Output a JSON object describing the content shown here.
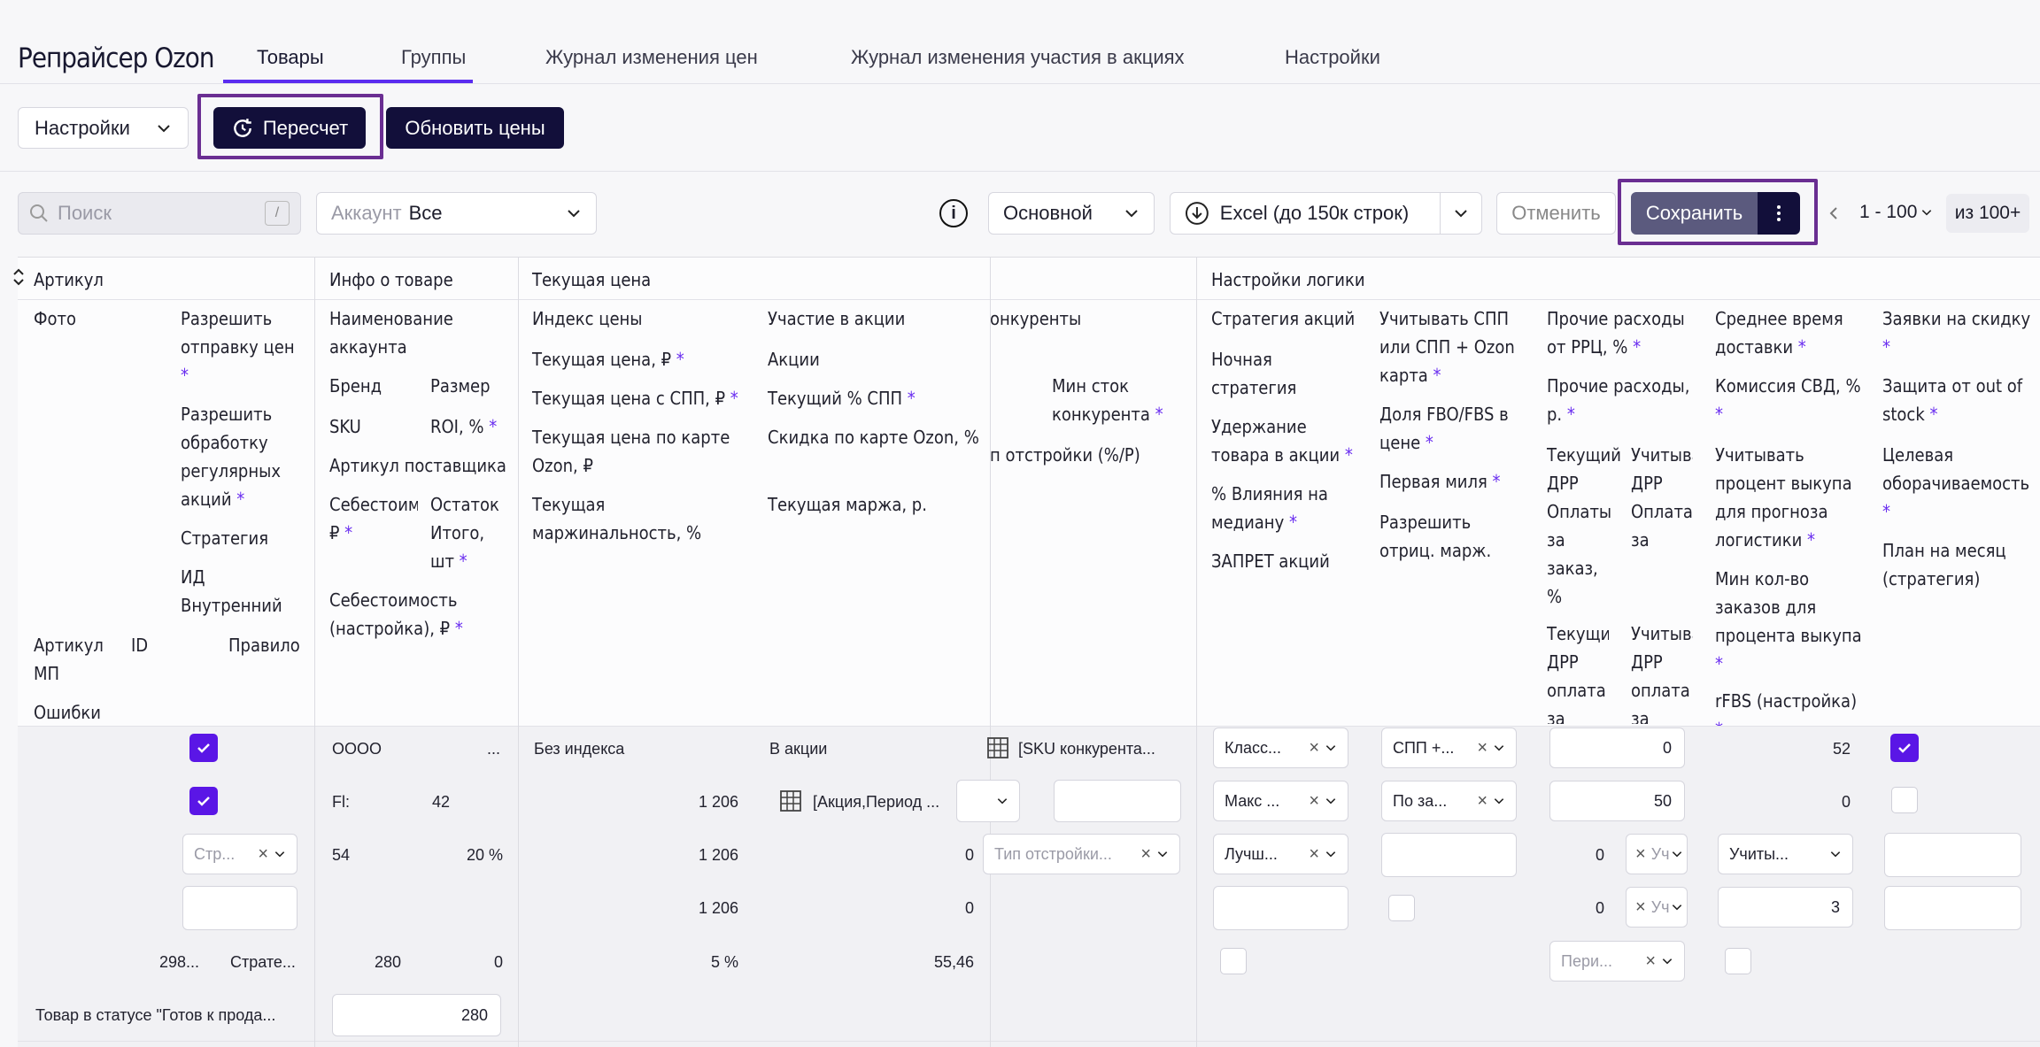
{
  "app": {
    "title": "Репрайсер Ozon"
  },
  "tabs": [
    {
      "label": "Товары"
    },
    {
      "label": "Группы"
    },
    {
      "label": "Журнал изменения цен"
    },
    {
      "label": "Журнал изменения участия в акциях"
    },
    {
      "label": "Настройки"
    }
  ],
  "toolbar": {
    "settings_label": "Настройки",
    "recalc_label": "Пересчет",
    "update_prices_label": "Обновить цены"
  },
  "filters": {
    "search_placeholder": "Поиск",
    "search_shortcut": "/",
    "account_label": "Аккаунт",
    "account_value": "Все",
    "view_value": "Основной",
    "excel_label": "Excel (до 150к строк)",
    "cancel_label": "Отменить",
    "save_label": "Сохранить",
    "pagination_range": "1 - 100",
    "pagination_total": "из 100+"
  },
  "groups": {
    "article": "Артикул",
    "product_info": "Инфо о товаре",
    "current_price": "Текущая цена",
    "logic_settings": "Настройки логики"
  },
  "cols": {
    "photo": "Фото",
    "allow_send": "Разрешить отправку цен",
    "allow_promo": "Разрешить обработку регулярных акций",
    "strategy": "Стратегия",
    "internal_id": "ИД Внутренний",
    "article_mp": "Артикул МП",
    "id": "ID",
    "rule": "Правило",
    "errors": "Ошибки",
    "account_name": "Наименование аккаунта",
    "brand": "Бренд",
    "size": "Размер",
    "sku": "SKU",
    "roi": "ROI, %",
    "supplier_article": "Артикул поставщика",
    "cost": "Себестоимость, ₽",
    "stock_total": "Остаток Итого, шт",
    "cost_setting": "Себестоимость (настройка), ₽",
    "price_index": "Индекс цены",
    "cur_price": "Текущая цена, ₽",
    "cur_price_spp": "Текущая цена с СПП, ₽",
    "cur_price_card": "Текущая цена по карте Ozon, ₽",
    "cur_margin_pct": "Текущая маржинальность, %",
    "promo_part": "Участие в акции",
    "promos": "Акции",
    "cur_spp": "Текущий % СПП",
    "card_discount": "Скидка по карте Ozon, %",
    "cur_margin_rub": "Текущая маржа, р.",
    "competitors": "онкуренты",
    "min_stock": "Мин сток конкурента",
    "tuning_type": "п отстройки (%/Р)",
    "promo_strategy": "Стратегия акций",
    "night_strategy": "Ночная стратегия",
    "keep_in_promo": "Удержание товара в акции",
    "median_influence": "% Влияния на медиану",
    "promo_ban": "ЗАПРЕТ акций",
    "consider_spp": "Учитывать СПП или СПП + Ozon карта",
    "fbo_fbs_share": "Доля FBO/FBS в цене",
    "first_mile": "Первая миля",
    "allow_neg_margin": "Разрешить отриц. марж.",
    "other_exp_rrc": "Прочие расходы от РРЦ, %",
    "other_exp_rub": "Прочие расходы, р.",
    "drr_order": "Текущий ДРР Оплаты за заказ, %",
    "drr_order_consider": "Учитывать ДРР Оплата за заказ",
    "drr_click": "Текущий ДРР оплата за клик, %",
    "drr_click_consider": "Учитывать ДРР оплата за клик",
    "avg_delivery": "Среднее время доставки",
    "svd_commission": "Комиссия СВД, %",
    "consider_buyout": "Учитывать процент выкупа для прогноза логистики",
    "min_orders_buyout": "Мин кол-во заказов для процента выкупа",
    "rfbs": "rFBS (настройка)",
    "discount_requests": "Заявки на скидку",
    "oos_protection": "Защита от out of stock",
    "target_turnover": "Целевая оборачиваемость",
    "month_plan": "План на месяц (стратегия)"
  },
  "row": {
    "strategy_sel": "Стр...",
    "internal_id_val": "298...",
    "rule_val": "Страте...",
    "error_text": "Товар в статусе \"Готов к прода...",
    "account": "OOOO",
    "account_more": "...",
    "brand": "Fl:",
    "size": "42",
    "sku": "54",
    "roi": "20 %",
    "cost": "280",
    "stock": "0",
    "cost_setting": "280",
    "price_index": "Без индекса",
    "cur_price": "1 206",
    "cur_price_spp": "1 206",
    "cur_price_card": "1 206",
    "margin_pct": "5 %",
    "promo_part": "В акции",
    "promos": "[Акция,Период ...",
    "spp": "0",
    "card_discount": "0",
    "margin_rub": "55,46",
    "competitors": "[SKU конкурента...",
    "tuning_placeholder": "Тип отстройки...",
    "promo_strategy": "Класс...",
    "night_strategy": "Макс ...",
    "keep_in_promo": "Лучш...",
    "consider_spp": "СПП +...",
    "fbo_fbs": "По за...",
    "other_rrc": "0",
    "other_rub": "50",
    "drr_order": "0",
    "drr_order_sel": "Уч",
    "drr_click": "0",
    "drr_click_sel": "Уч",
    "drr_period": "Пери...",
    "avg_delivery": "52",
    "svd": "0",
    "consider_buyout": "Учиты...",
    "min_orders": "3"
  }
}
